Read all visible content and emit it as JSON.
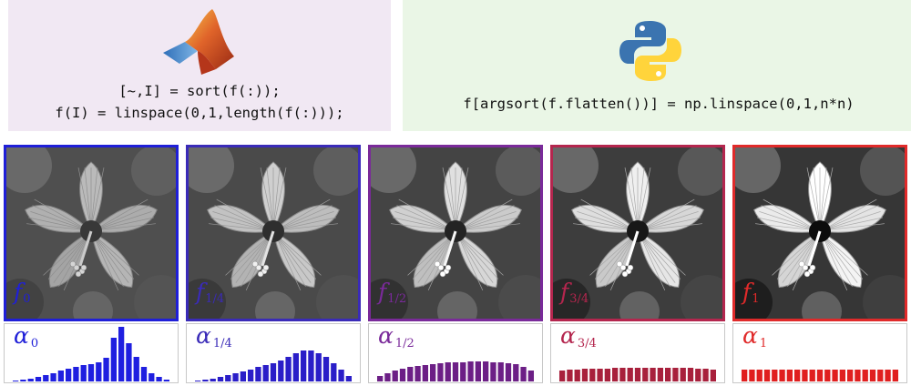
{
  "panels": {
    "matlab": {
      "logo": "matlab-membrane-logo-icon",
      "background": "#f1e8f3",
      "code_line_1": "[~,I] = sort(f(:));",
      "code_line_2": "f(I) = linspace(0,1,length(f(:)));"
    },
    "python": {
      "logo": "python-snakes-logo-icon",
      "background": "#eaf6e6",
      "code_line_1": "f[argsort(f.flatten())] = np.linspace(0,1,n*n)"
    }
  },
  "columns": [
    {
      "image_label": "f",
      "image_sub": "0",
      "hist_label": "α",
      "hist_sub": "0",
      "color": "#1f1fd8",
      "bar_color": "#1f1fe0",
      "brightness": 0.95,
      "contrast": 0.85
    },
    {
      "image_label": "f",
      "image_sub": "1/4",
      "hist_label": "α",
      "hist_sub": "1/4",
      "color": "#3a2bb8",
      "bar_color": "#2a1ec8",
      "brightness": 1.0,
      "contrast": 1.0
    },
    {
      "image_label": "f",
      "image_sub": "1/2",
      "hist_label": "α",
      "hist_sub": "1/2",
      "color": "#7a2a9a",
      "bar_color": "#6c1f86",
      "brightness": 1.02,
      "contrast": 1.15
    },
    {
      "image_label": "f",
      "image_sub": "3/4",
      "hist_label": "α",
      "hist_sub": "3/4",
      "color": "#b4264e",
      "bar_color": "#a8203c",
      "brightness": 1.03,
      "contrast": 1.3
    },
    {
      "image_label": "f",
      "image_sub": "1",
      "hist_label": "α",
      "hist_sub": "1",
      "color": "#e02a2a",
      "bar_color": "#e01f1f",
      "brightness": 1.04,
      "contrast": 1.45
    }
  ],
  "chart_data": [
    {
      "type": "bar",
      "name": "α_0",
      "values": [
        1,
        2,
        3,
        5,
        7,
        9,
        12,
        14,
        16,
        18,
        19,
        21,
        26,
        48,
        60,
        42,
        27,
        16,
        9,
        5,
        2
      ]
    },
    {
      "type": "bar",
      "name": "α_1/4",
      "values": [
        1,
        2,
        3,
        5,
        7,
        9,
        11,
        13,
        16,
        18,
        20,
        23,
        27,
        31,
        34,
        34,
        31,
        27,
        20,
        13,
        6
      ]
    },
    {
      "type": "bar",
      "name": "α_1/2",
      "values": [
        6,
        9,
        12,
        14,
        16,
        17,
        18,
        19,
        20,
        21,
        21,
        21,
        22,
        22,
        22,
        21,
        21,
        20,
        19,
        16,
        12
      ]
    },
    {
      "type": "bar",
      "name": "α_3/4",
      "values": [
        12,
        13,
        13,
        14,
        14,
        14,
        14,
        15,
        15,
        15,
        15,
        15,
        15,
        15,
        15,
        15,
        15,
        15,
        14,
        14,
        13
      ]
    },
    {
      "type": "bar",
      "name": "α_1",
      "values": [
        13,
        13,
        13,
        13,
        13,
        13,
        13,
        13,
        13,
        13,
        13,
        13,
        13,
        13,
        13,
        13,
        13,
        13,
        13,
        13,
        13
      ]
    }
  ]
}
